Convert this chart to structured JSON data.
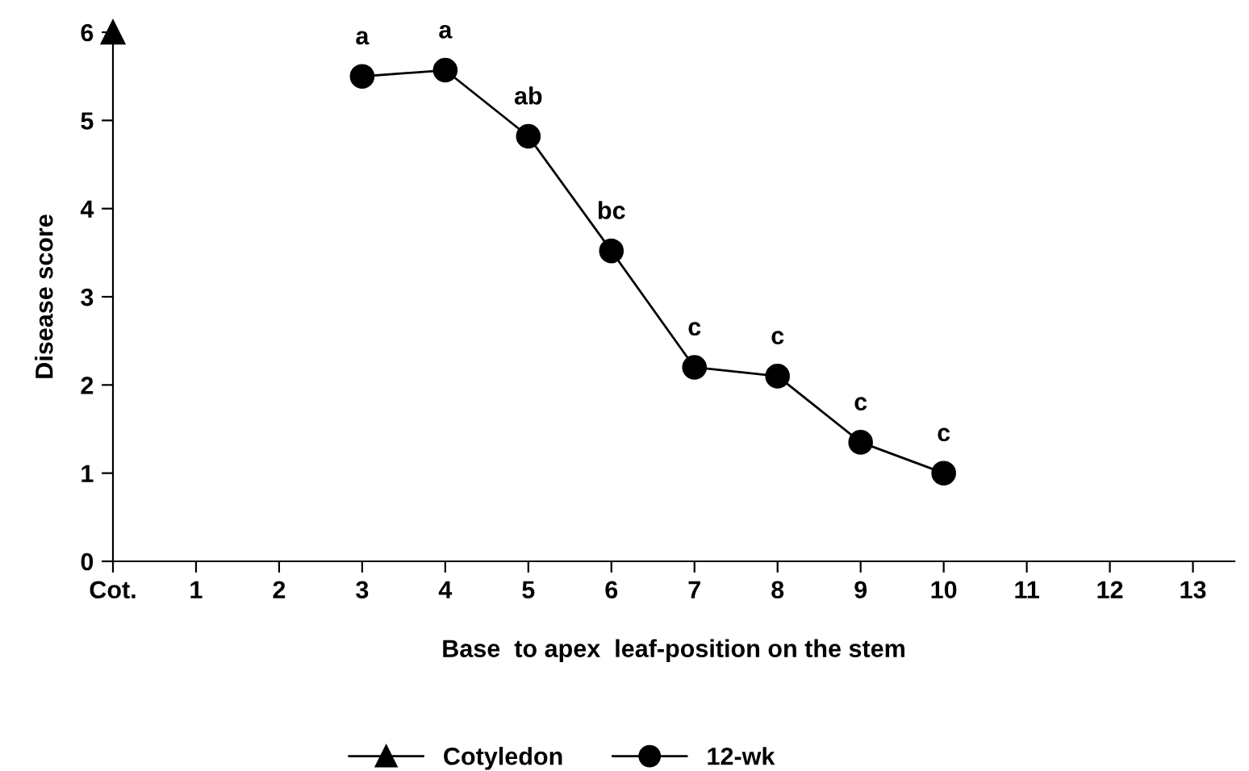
{
  "chart_data": {
    "type": "line",
    "xlabel": "Base  to apex  leaf-position on the stem",
    "ylabel": "Disease score",
    "categories": [
      "Cot.",
      "1",
      "2",
      "3",
      "4",
      "5",
      "6",
      "7",
      "8",
      "9",
      "10",
      "11",
      "12",
      "13"
    ],
    "series": [
      {
        "name": "Cotyledon",
        "color": "#000000",
        "marker": "triangle",
        "x": [
          "Cot."
        ],
        "values": [
          6
        ]
      },
      {
        "name": "12-wk",
        "color": "#000000",
        "marker": "circle",
        "x": [
          "3",
          "4",
          "5",
          "6",
          "7",
          "8",
          "9",
          "10"
        ],
        "values": [
          5.5,
          5.57,
          4.82,
          3.52,
          2.2,
          2.1,
          1.35,
          1.0
        ]
      }
    ],
    "annotations": [
      {
        "text": "a",
        "x": "3",
        "y": 5.5
      },
      {
        "text": "a",
        "x": "4",
        "y": 5.57
      },
      {
        "text": "ab",
        "x": "5",
        "y": 4.82
      },
      {
        "text": "bc",
        "x": "6",
        "y": 3.52
      },
      {
        "text": "c",
        "x": "7",
        "y": 2.2
      },
      {
        "text": "c",
        "x": "8",
        "y": 2.1
      },
      {
        "text": "c",
        "x": "9",
        "y": 1.35
      },
      {
        "text": "c",
        "x": "10",
        "y": 1.0
      }
    ],
    "ylim": [
      0,
      6
    ],
    "yticks": [
      0,
      1,
      2,
      3,
      4,
      5,
      6
    ],
    "grid": false,
    "legend": "bottom",
    "line_style": "solid"
  }
}
